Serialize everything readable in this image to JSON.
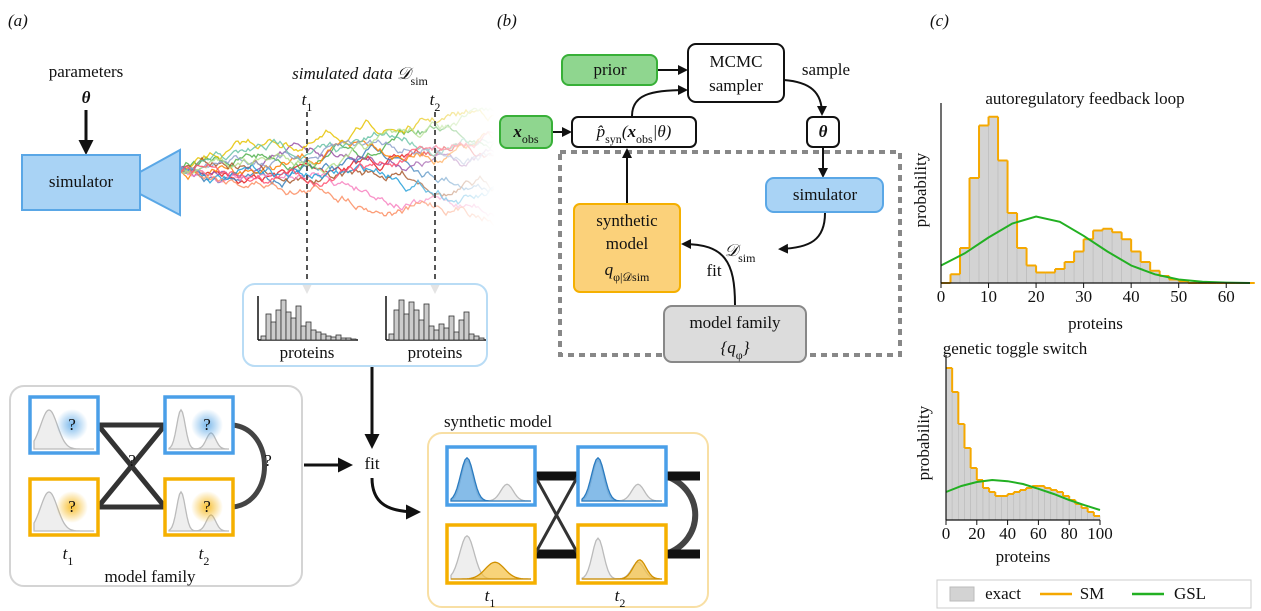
{
  "labels": {
    "a": "(a)",
    "b": "(b)",
    "c": "(c)"
  },
  "panel_a": {
    "parameters": "parameters",
    "theta": "θ",
    "simulator": "simulator",
    "simulated_data": {
      "text": "simulated data 𝒟",
      "sub": "sim"
    },
    "t1": {
      "text": "t",
      "sub": "1"
    },
    "t2": {
      "text": "t",
      "sub": "2"
    },
    "proteins_1": "proteins",
    "proteins_2": "proteins",
    "question_marks": [
      "?",
      "?",
      "?",
      "?",
      "?",
      "?"
    ],
    "model_family": "model family",
    "fit": "fit",
    "synthetic_model": "synthetic model"
  },
  "panel_b": {
    "prior": "prior",
    "mcmc": "MCMC",
    "sampler": "sampler",
    "sample": "sample",
    "theta": "θ",
    "x_obs": {
      "x": "x",
      "sub": "obs"
    },
    "likelihood": {
      "p": "p̂",
      "p_sub": "syn",
      "open": "(",
      "x": "x",
      "x_sub": "obs",
      "rest": "|θ)"
    },
    "simulator": "simulator",
    "d_sim": {
      "text": "𝒟",
      "sub": "sim"
    },
    "synthetic": "synthetic",
    "model": "model",
    "q": {
      "text": "q",
      "sub": "φ|𝒟sim"
    },
    "fit": "fit",
    "model_family": "model family",
    "family_set": {
      "open": "{q",
      "sub": "φ",
      "close": "}"
    }
  },
  "chart_data": [
    {
      "type": "histogram",
      "title": "autoregulatory feedback loop",
      "xlabel": "proteins",
      "ylabel": "probability",
      "bins": [
        0,
        2,
        4,
        6,
        8,
        10,
        12,
        14,
        16,
        18,
        20,
        22,
        24,
        26,
        28,
        30,
        32,
        34,
        36,
        38,
        40,
        42,
        44,
        46,
        48,
        50,
        52,
        54,
        56,
        58,
        60,
        62,
        64,
        66
      ],
      "xlim": [
        0,
        65
      ],
      "ylim": [
        0,
        0.1
      ],
      "xticks": [
        0,
        10,
        20,
        30,
        40,
        50,
        60
      ],
      "series": [
        {
          "color": "#d3d3d3",
          "values": [
            0,
            0.005,
            0.02,
            0.06,
            0.09,
            0.095,
            0.07,
            0.04,
            0.02,
            0.01,
            0.006,
            0.006,
            0.008,
            0.012,
            0.018,
            0.025,
            0.03,
            0.031,
            0.029,
            0.025,
            0.018,
            0.012,
            0.007,
            0.004,
            0.002,
            0.001,
            0,
            0,
            0,
            0,
            0,
            0,
            0
          ]
        },
        {
          "color": "#f5a800",
          "values": [
            0,
            0.005,
            0.02,
            0.06,
            0.09,
            0.095,
            0.07,
            0.04,
            0.02,
            0.01,
            0.006,
            0.006,
            0.008,
            0.012,
            0.018,
            0.025,
            0.03,
            0.031,
            0.029,
            0.025,
            0.018,
            0.012,
            0.007,
            0.004,
            0.002,
            0.001,
            0,
            0,
            0,
            0,
            0,
            0,
            0
          ]
        },
        {
          "color": "#22b022",
          "x": [
            0,
            5,
            10,
            15,
            20,
            25,
            30,
            35,
            40,
            45,
            50,
            55,
            60,
            65
          ],
          "values": [
            0.01,
            0.017,
            0.026,
            0.034,
            0.038,
            0.035,
            0.027,
            0.018,
            0.01,
            0.005,
            0.002,
            0.0007,
            0.0002,
            0
          ]
        }
      ]
    },
    {
      "type": "histogram",
      "title": "genetic toggle switch",
      "xlabel": "proteins",
      "ylabel": "probability",
      "bins": [
        0,
        4,
        8,
        12,
        16,
        20,
        24,
        28,
        32,
        36,
        40,
        44,
        48,
        52,
        56,
        60,
        64,
        68,
        72,
        76,
        80,
        84,
        88,
        92,
        96,
        100
      ],
      "xlim": [
        0,
        100
      ],
      "ylim": [
        0,
        0.04
      ],
      "xticks": [
        0,
        20,
        40,
        60,
        80,
        100
      ],
      "series": [
        {
          "name": "exact",
          "color": "#d3d3d3",
          "values": [
            0.038,
            0.032,
            0.024,
            0.018,
            0.013,
            0.01,
            0.008,
            0.007,
            0.006,
            0.006,
            0.0065,
            0.007,
            0.0075,
            0.008,
            0.0085,
            0.0085,
            0.008,
            0.0075,
            0.007,
            0.006,
            0.005,
            0.004,
            0.003,
            0.002,
            0.001
          ]
        },
        {
          "name": "SM",
          "color": "#f5a800",
          "values": [
            0.038,
            0.032,
            0.024,
            0.018,
            0.013,
            0.01,
            0.008,
            0.007,
            0.006,
            0.006,
            0.0065,
            0.007,
            0.0075,
            0.008,
            0.0085,
            0.0085,
            0.008,
            0.0075,
            0.007,
            0.006,
            0.005,
            0.004,
            0.003,
            0.002,
            0.001
          ]
        },
        {
          "name": "GSL",
          "color": "#22b022",
          "x": [
            0,
            10,
            20,
            30,
            40,
            50,
            60,
            70,
            80,
            90,
            100
          ],
          "values": [
            0.007,
            0.0085,
            0.0095,
            0.01,
            0.0097,
            0.009,
            0.0078,
            0.0065,
            0.005,
            0.0037,
            0.0025
          ]
        }
      ]
    }
  ]
}
